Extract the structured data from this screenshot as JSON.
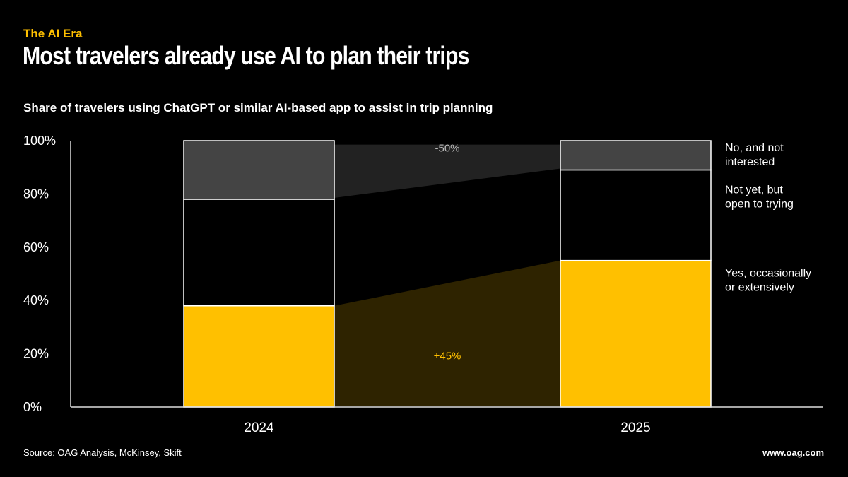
{
  "header": {
    "kicker": "The AI Era",
    "title": "Most travelers already use AI to plan their trips",
    "subtitle": "Share of travelers using ChatGPT or similar AI-based app to assist in trip planning"
  },
  "footer": {
    "source": "Source: OAG Analysis, McKinsey, Skift",
    "url": "www.oag.com"
  },
  "chart_data": {
    "type": "bar",
    "stacked": true,
    "categories": [
      "2024",
      "2025"
    ],
    "series": [
      {
        "name": "Yes, occasionally or extensively",
        "values": [
          38,
          55
        ],
        "color": "#FFC000"
      },
      {
        "name": "Not yet, but open to trying",
        "values": [
          40,
          34
        ],
        "color": "#000000"
      },
      {
        "name": "No, and not interested",
        "values": [
          22,
          11
        ],
        "color": "#444444"
      }
    ],
    "legend_lines": [
      [
        "Yes, occasionally",
        "or extensively"
      ],
      [
        "Not yet, but",
        "open to trying"
      ],
      [
        "No, and not",
        "interested"
      ]
    ],
    "annotations": [
      {
        "text": "+45%",
        "series": "Yes, occasionally or extensively",
        "color": "#FFC000"
      },
      {
        "text": "-50%",
        "series": "No, and not interested",
        "color": "#bbbbbb"
      }
    ],
    "yticks": [
      "0%",
      "20%",
      "40%",
      "60%",
      "80%",
      "100%"
    ],
    "ylim": [
      0,
      100
    ],
    "legend_position": "right",
    "grid": false
  }
}
